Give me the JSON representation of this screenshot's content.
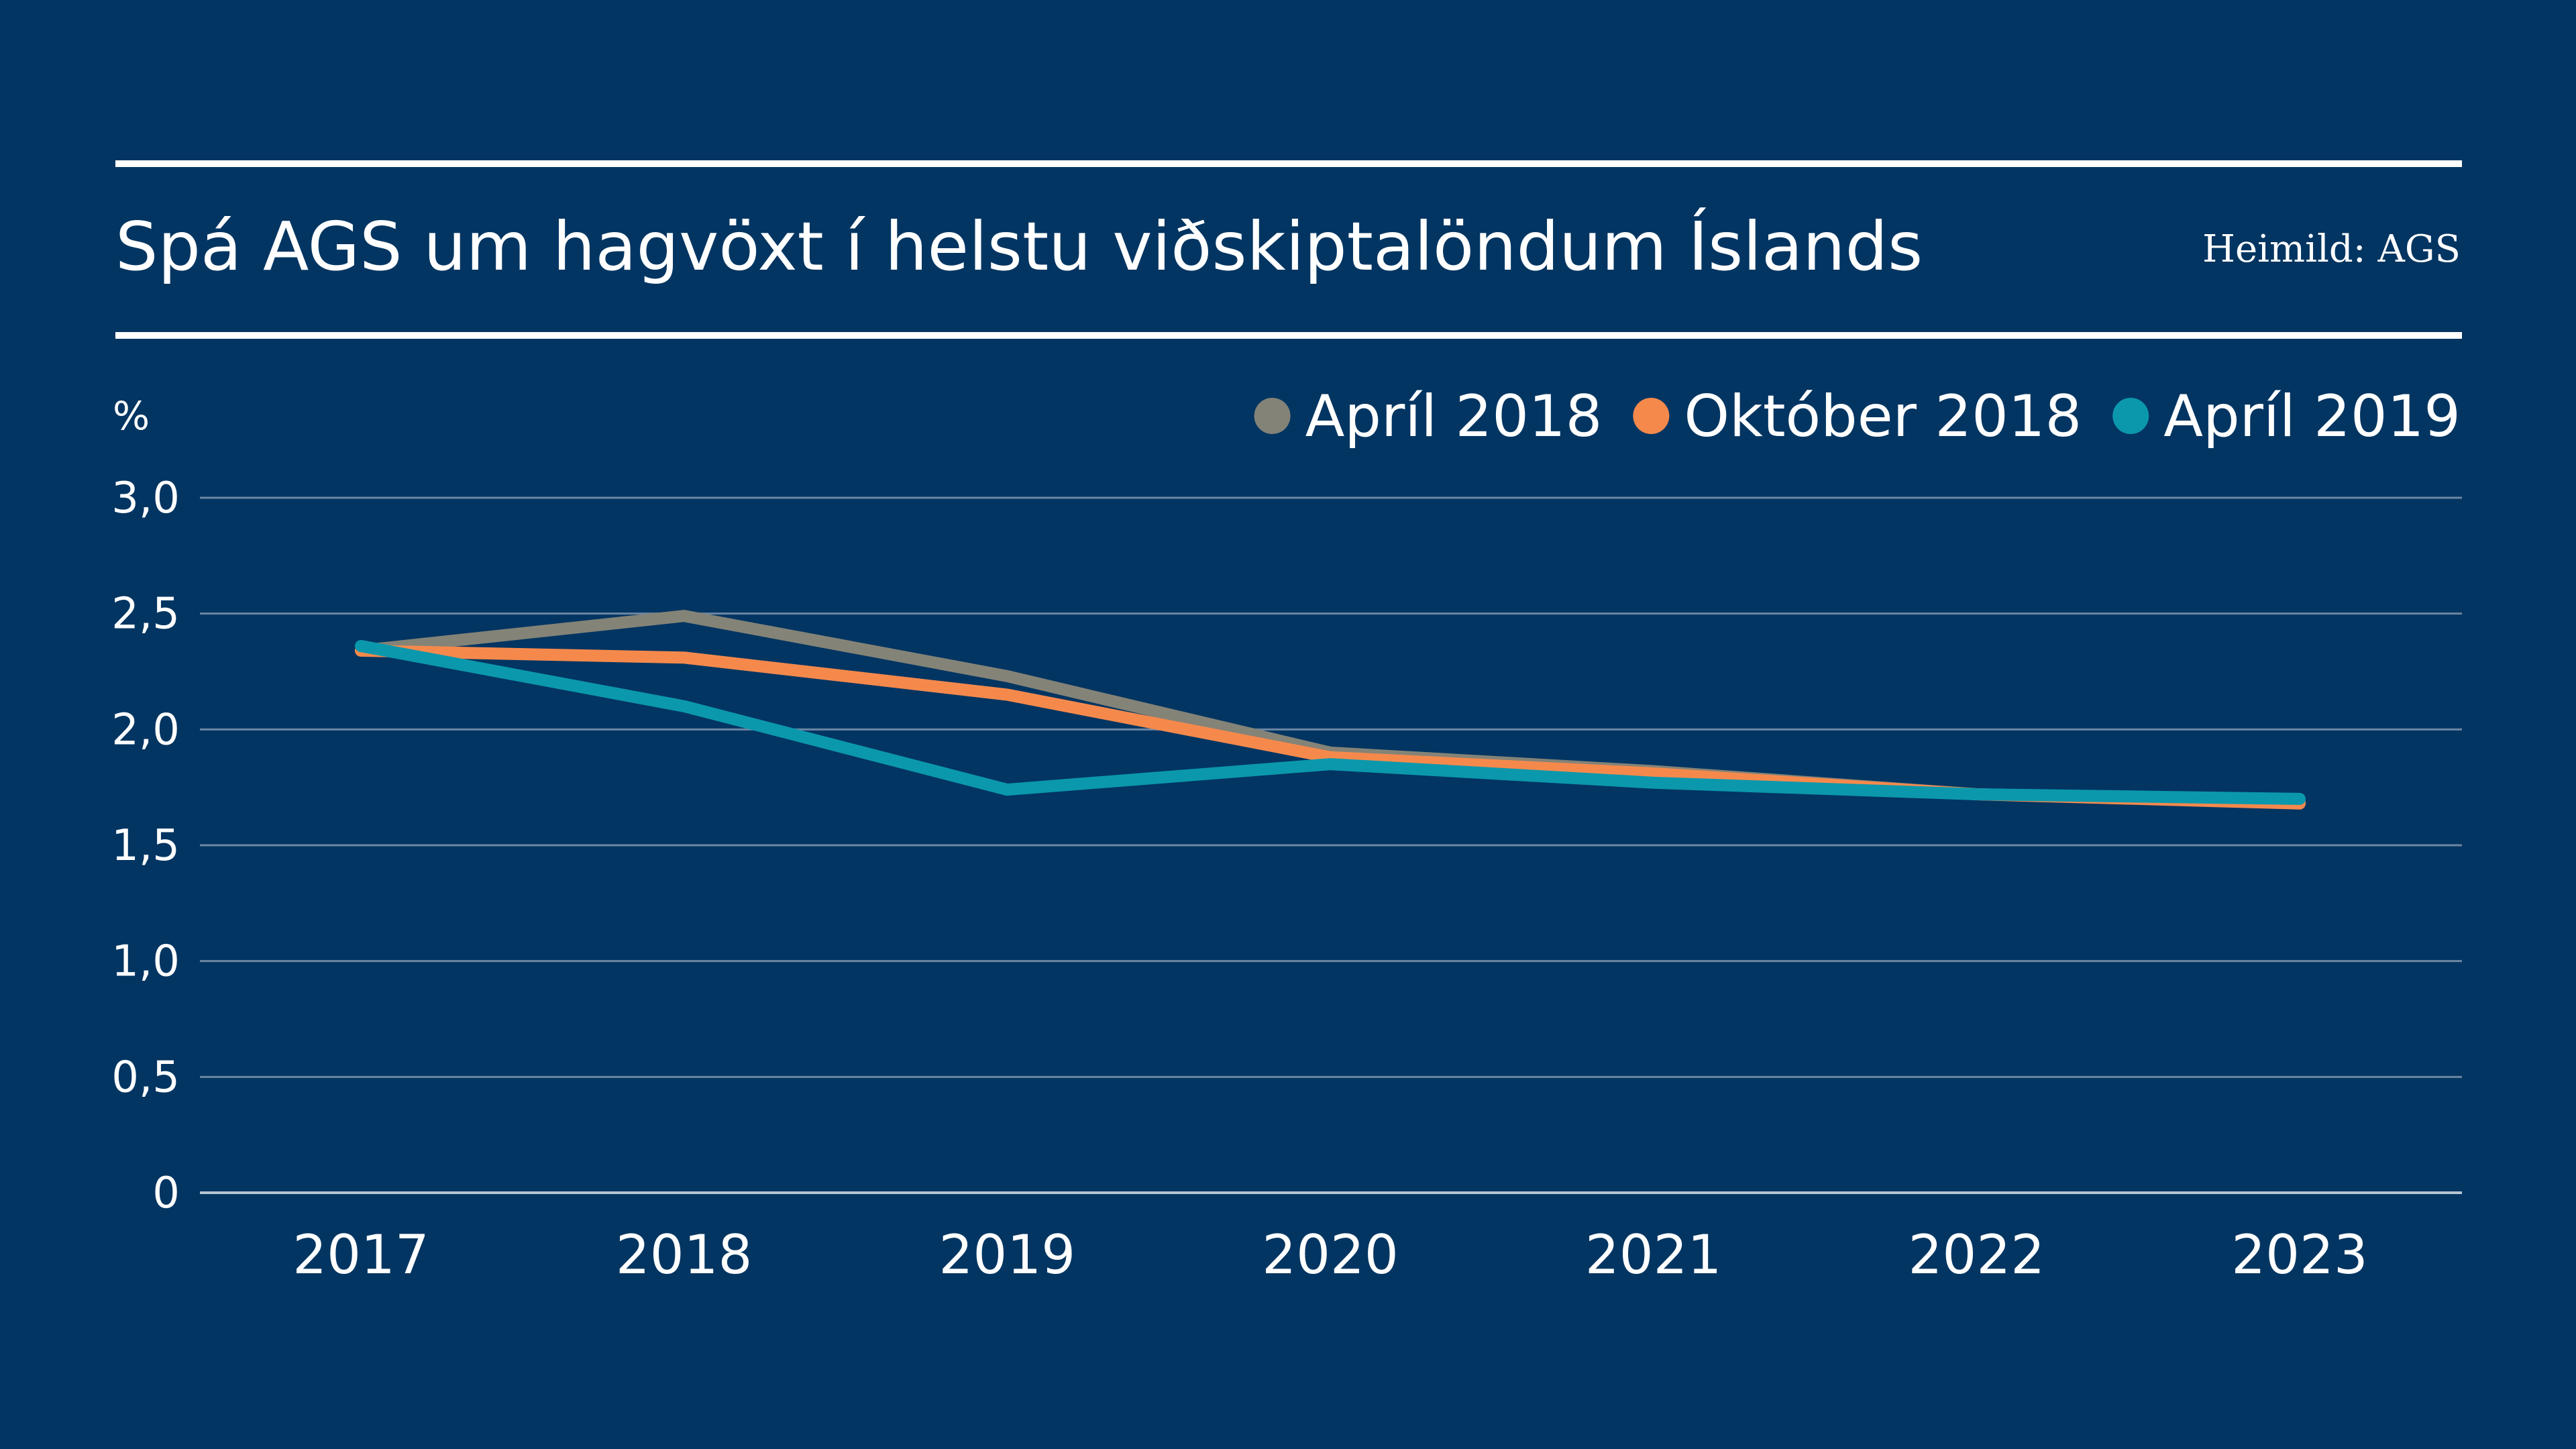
{
  "chart_data": {
    "type": "line",
    "title": "Spá AGS um hagvöxt í helstu viðskiptalöndum Íslands",
    "source": "Heimild: AGS",
    "ylabel": "%",
    "xlabel": "",
    "ylim": [
      0,
      3.0
    ],
    "yticks": [
      {
        "value": 0,
        "label": "0"
      },
      {
        "value": 0.5,
        "label": "0,5"
      },
      {
        "value": 1.0,
        "label": "1,0"
      },
      {
        "value": 1.5,
        "label": "1,5"
      },
      {
        "value": 2.0,
        "label": "2,0"
      },
      {
        "value": 2.5,
        "label": "2,5"
      },
      {
        "value": 3.0,
        "label": "3,0"
      }
    ],
    "categories": [
      "2017",
      "2018",
      "2019",
      "2020",
      "2021",
      "2022",
      "2023"
    ],
    "grid": true,
    "legend_position": "top-right",
    "series": [
      {
        "name": "Apríl 2018",
        "color": "#848377",
        "values": [
          2.34,
          2.49,
          2.23,
          1.9,
          1.82,
          1.72,
          1.69
        ]
      },
      {
        "name": "Október 2018",
        "color": "#f5894c",
        "values": [
          2.34,
          2.31,
          2.15,
          1.88,
          1.81,
          1.72,
          1.68
        ]
      },
      {
        "name": "Apríl 2019",
        "color": "#0b98ad",
        "values": [
          2.36,
          2.1,
          1.74,
          1.85,
          1.77,
          1.72,
          1.7
        ]
      }
    ],
    "colors": {
      "background": "#023562",
      "text": "#ffffff",
      "grid": "#6d87a3",
      "axis": "#b7c4d2"
    }
  }
}
